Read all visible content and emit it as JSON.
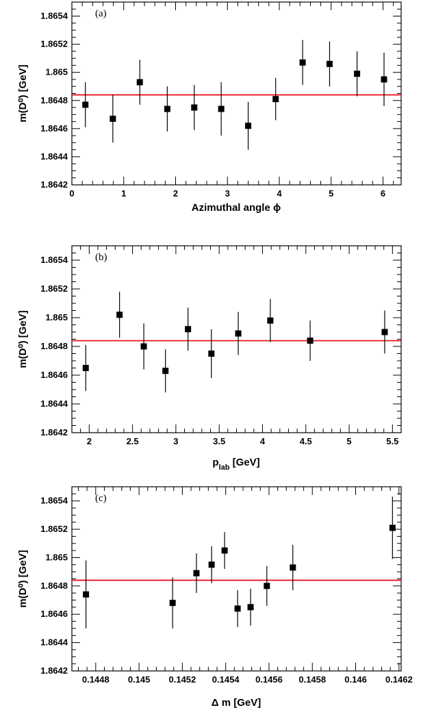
{
  "chart_data": [
    {
      "type": "scatter",
      "panel_label": "(a)",
      "ylabel": "m(D⁰) [GeV]",
      "xlabel": "Azimuthal angle ϕ",
      "xlim": [
        0,
        6.35
      ],
      "ylim": [
        1.8642,
        1.8655
      ],
      "xticks": [
        0,
        1,
        2,
        3,
        4,
        5,
        6
      ],
      "xtick_labels": [
        "0",
        "1",
        "2",
        "3",
        "4",
        "5",
        "6"
      ],
      "yticks": [
        1.8642,
        1.8644,
        1.8646,
        1.8648,
        1.865,
        1.8652,
        1.8654
      ],
      "ytick_labels": [
        "1.8642",
        "1.8644",
        "1.8646",
        "1.8648",
        "1.865",
        "1.8652",
        "1.8654"
      ],
      "fit_value": 1.86484,
      "fit_color": "#e8141c",
      "marker_color": "#000000",
      "grid": false,
      "points": [
        {
          "x": 0.26,
          "y": 1.86477,
          "err": 0.00016
        },
        {
          "x": 0.79,
          "y": 1.86467,
          "err": 0.00017
        },
        {
          "x": 1.31,
          "y": 1.86493,
          "err": 0.00016
        },
        {
          "x": 1.84,
          "y": 1.86474,
          "err": 0.00016
        },
        {
          "x": 2.36,
          "y": 1.86475,
          "err": 0.00016
        },
        {
          "x": 2.88,
          "y": 1.86474,
          "err": 0.00019
        },
        {
          "x": 3.4,
          "y": 1.86462,
          "err": 0.00017
        },
        {
          "x": 3.93,
          "y": 1.86481,
          "err": 0.00015
        },
        {
          "x": 4.45,
          "y": 1.86507,
          "err": 0.00016
        },
        {
          "x": 4.97,
          "y": 1.86506,
          "err": 0.00016
        },
        {
          "x": 5.5,
          "y": 1.86499,
          "err": 0.00016
        },
        {
          "x": 6.02,
          "y": 1.86495,
          "err": 0.00019
        }
      ]
    },
    {
      "type": "scatter",
      "panel_label": "(b)",
      "ylabel": "m(D⁰) [GeV]",
      "xlabel": "p",
      "xlabel_subscript": "lab",
      "xlabel_suffix": " [GeV]",
      "xlim": [
        1.8,
        5.6
      ],
      "ylim": [
        1.8642,
        1.8655
      ],
      "xticks": [
        2,
        2.5,
        3,
        3.5,
        4,
        4.5,
        5,
        5.5
      ],
      "xtick_labels": [
        "2",
        "2.5",
        "3",
        "3.5",
        "4",
        "4.5",
        "5",
        "5.5"
      ],
      "yticks": [
        1.8642,
        1.8644,
        1.8646,
        1.8648,
        1.865,
        1.8652,
        1.8654
      ],
      "ytick_labels": [
        "1.8642",
        "1.8644",
        "1.8646",
        "1.8648",
        "1.865",
        "1.8652",
        "1.8654"
      ],
      "fit_value": 1.86484,
      "fit_color": "#e8141c",
      "marker_color": "#000000",
      "grid": false,
      "points": [
        {
          "x": 1.96,
          "y": 1.86465,
          "err": 0.00016
        },
        {
          "x": 2.35,
          "y": 1.86502,
          "err": 0.00016
        },
        {
          "x": 2.63,
          "y": 1.8648,
          "err": 0.00016
        },
        {
          "x": 2.88,
          "y": 1.86463,
          "err": 0.00015
        },
        {
          "x": 3.14,
          "y": 1.86492,
          "err": 0.00015
        },
        {
          "x": 3.41,
          "y": 1.86475,
          "err": 0.00017
        },
        {
          "x": 3.72,
          "y": 1.86489,
          "err": 0.00015
        },
        {
          "x": 4.09,
          "y": 1.86498,
          "err": 0.00015
        },
        {
          "x": 4.55,
          "y": 1.86484,
          "err": 0.00014
        },
        {
          "x": 5.41,
          "y": 1.8649,
          "err": 0.00015
        }
      ]
    },
    {
      "type": "scatter",
      "panel_label": "(c)",
      "ylabel": "m(D⁰) [GeV]",
      "xlabel": "Δ m [GeV]",
      "xlim": [
        0.14469,
        0.14621
      ],
      "ylim": [
        1.8642,
        1.8655
      ],
      "xticks": [
        0.1448,
        0.145,
        0.1452,
        0.1454,
        0.1456,
        0.1458,
        0.146,
        0.1462
      ],
      "xtick_labels": [
        "0.1448",
        "0.145",
        "0.1452",
        "0.1454",
        "0.1456",
        "0.1458",
        "0.146",
        "0.1462"
      ],
      "yticks": [
        1.8642,
        1.8644,
        1.8646,
        1.8648,
        1.865,
        1.8652,
        1.8654
      ],
      "ytick_labels": [
        "1.8642",
        "1.8644",
        "1.8646",
        "1.8648",
        "1.865",
        "1.8652",
        "1.8654"
      ],
      "fit_value": 1.86484,
      "fit_color": "#e8141c",
      "marker_color": "#000000",
      "grid": false,
      "points": [
        {
          "x": 0.144755,
          "y": 1.86474,
          "err": 0.00024
        },
        {
          "x": 0.145155,
          "y": 1.86468,
          "err": 0.00018
        },
        {
          "x": 0.145265,
          "y": 1.86489,
          "err": 0.00014
        },
        {
          "x": 0.145335,
          "y": 1.86495,
          "err": 0.00013
        },
        {
          "x": 0.145395,
          "y": 1.86505,
          "err": 0.00013
        },
        {
          "x": 0.145455,
          "y": 1.86464,
          "err": 0.00013
        },
        {
          "x": 0.145515,
          "y": 1.86465,
          "err": 0.00013
        },
        {
          "x": 0.14559,
          "y": 1.8648,
          "err": 0.00014
        },
        {
          "x": 0.14571,
          "y": 1.86493,
          "err": 0.00016
        },
        {
          "x": 0.14617,
          "y": 1.86521,
          "err": 0.00022
        }
      ]
    }
  ]
}
